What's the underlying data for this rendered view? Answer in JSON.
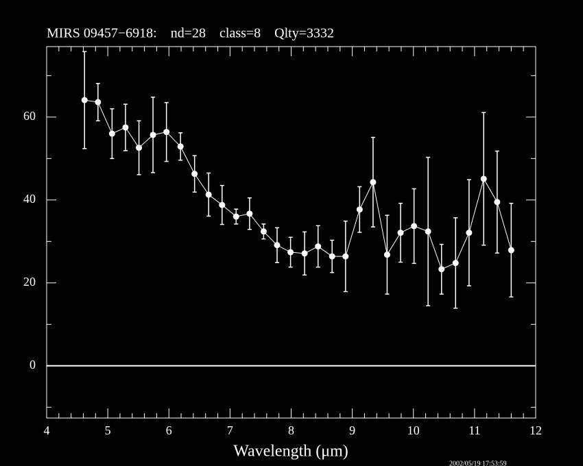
{
  "chart_data": {
    "type": "errorbar",
    "title": "MIRS 09457−6918:    nd=28    class=8    Qlty=3332",
    "xlabel": "Wavelength (μm)",
    "timestamp": "2002/05/19 17:53:59",
    "x": [
      4.62,
      4.84,
      5.07,
      5.29,
      5.51,
      5.74,
      5.96,
      6.19,
      6.42,
      6.65,
      6.87,
      7.1,
      7.32,
      7.55,
      7.77,
      7.99,
      8.22,
      8.44,
      8.67,
      8.89,
      9.12,
      9.34,
      9.57,
      9.79,
      10.01,
      10.24,
      10.46,
      10.69,
      10.91,
      11.15,
      11.37,
      11.6
    ],
    "values": [
      64.1,
      63.6,
      56.0,
      57.5,
      52.6,
      55.7,
      56.4,
      52.9,
      46.3,
      41.3,
      38.8,
      36.0,
      36.7,
      32.4,
      29.1,
      27.4,
      27.1,
      28.8,
      26.4,
      26.4,
      37.7,
      44.3,
      26.8,
      32.1,
      33.7,
      32.4,
      23.3,
      24.8,
      32.1,
      45.1,
      39.5,
      27.9
    ],
    "errors": [
      11.7,
      4.5,
      6.0,
      5.6,
      6.5,
      9.1,
      7.1,
      3.3,
      4.4,
      5.2,
      4.7,
      1.8,
      3.8,
      1.8,
      4.2,
      3.6,
      5.2,
      5.0,
      3.9,
      8.5,
      5.5,
      10.8,
      9.5,
      7.1,
      9.0,
      17.9,
      6.0,
      10.9,
      12.8,
      16.0,
      12.3,
      11.3
    ],
    "color": "#ffffff",
    "xlim": [
      4,
      12
    ],
    "ylim": [
      -12.6,
      77
    ],
    "xticks": [
      4,
      5,
      6,
      7,
      8,
      9,
      10,
      11,
      12
    ],
    "yticks": [
      0,
      20,
      40,
      60
    ],
    "xminorticks": [
      4.2,
      4.4,
      4.6,
      4.8,
      5.2,
      5.4,
      5.6,
      5.8,
      6.2,
      6.4,
      6.6,
      6.8,
      7.2,
      7.4,
      7.6,
      7.8,
      8.2,
      8.4,
      8.6,
      8.8,
      9.2,
      9.4,
      9.6,
      9.8,
      10.2,
      10.4,
      10.6,
      10.8,
      11.2,
      11.4,
      11.6,
      11.8
    ],
    "yminorticks": [
      -10,
      10,
      30,
      50,
      70
    ],
    "hline": 0
  }
}
